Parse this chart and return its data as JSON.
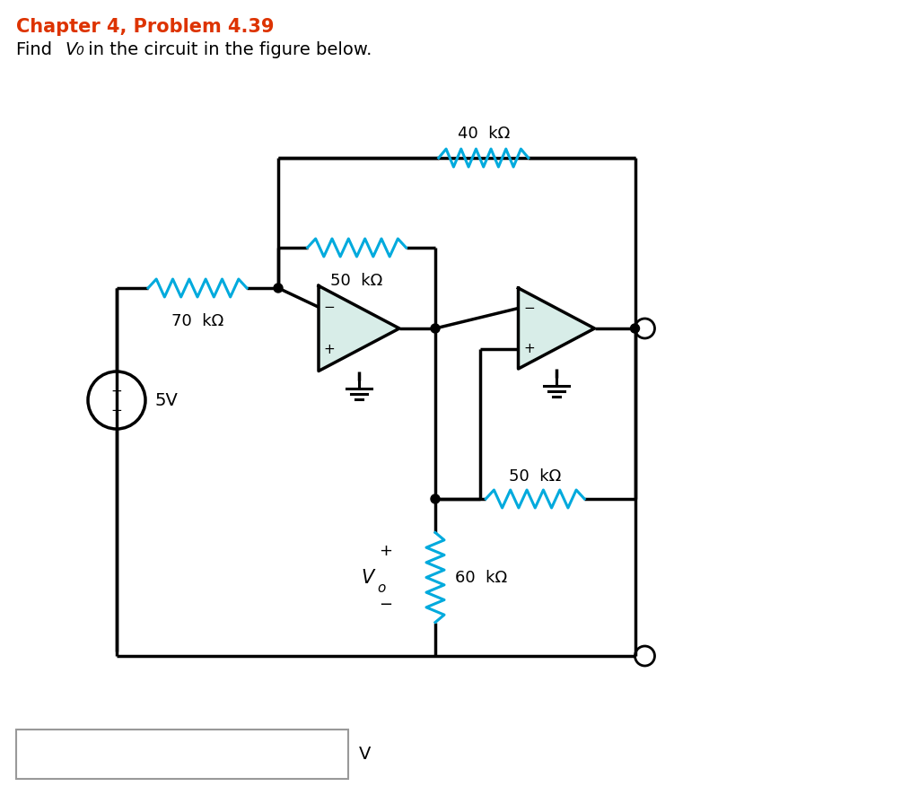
{
  "title_line1": "Chapter 4, Problem 4.39",
  "title_color": "#dd3300",
  "text_color": "#000000",
  "resistor_color": "#00aadd",
  "opamp_fill": "#d8ede8",
  "wire_color": "#000000",
  "bg_color": "#ffffff",
  "R1_label": "70  kΩ",
  "R2_label": "50  kΩ",
  "R3_label": "40  kΩ",
  "R4_label": "50  kΩ",
  "R5_label": "60  kΩ",
  "Vs_label": "5V",
  "Vo_label": "V",
  "Vo_sub": "o",
  "unit_V": "V",
  "find_text": "Find ",
  "find_V": "V",
  "find_sub": "0",
  "find_rest": " in the circuit in the figure below."
}
